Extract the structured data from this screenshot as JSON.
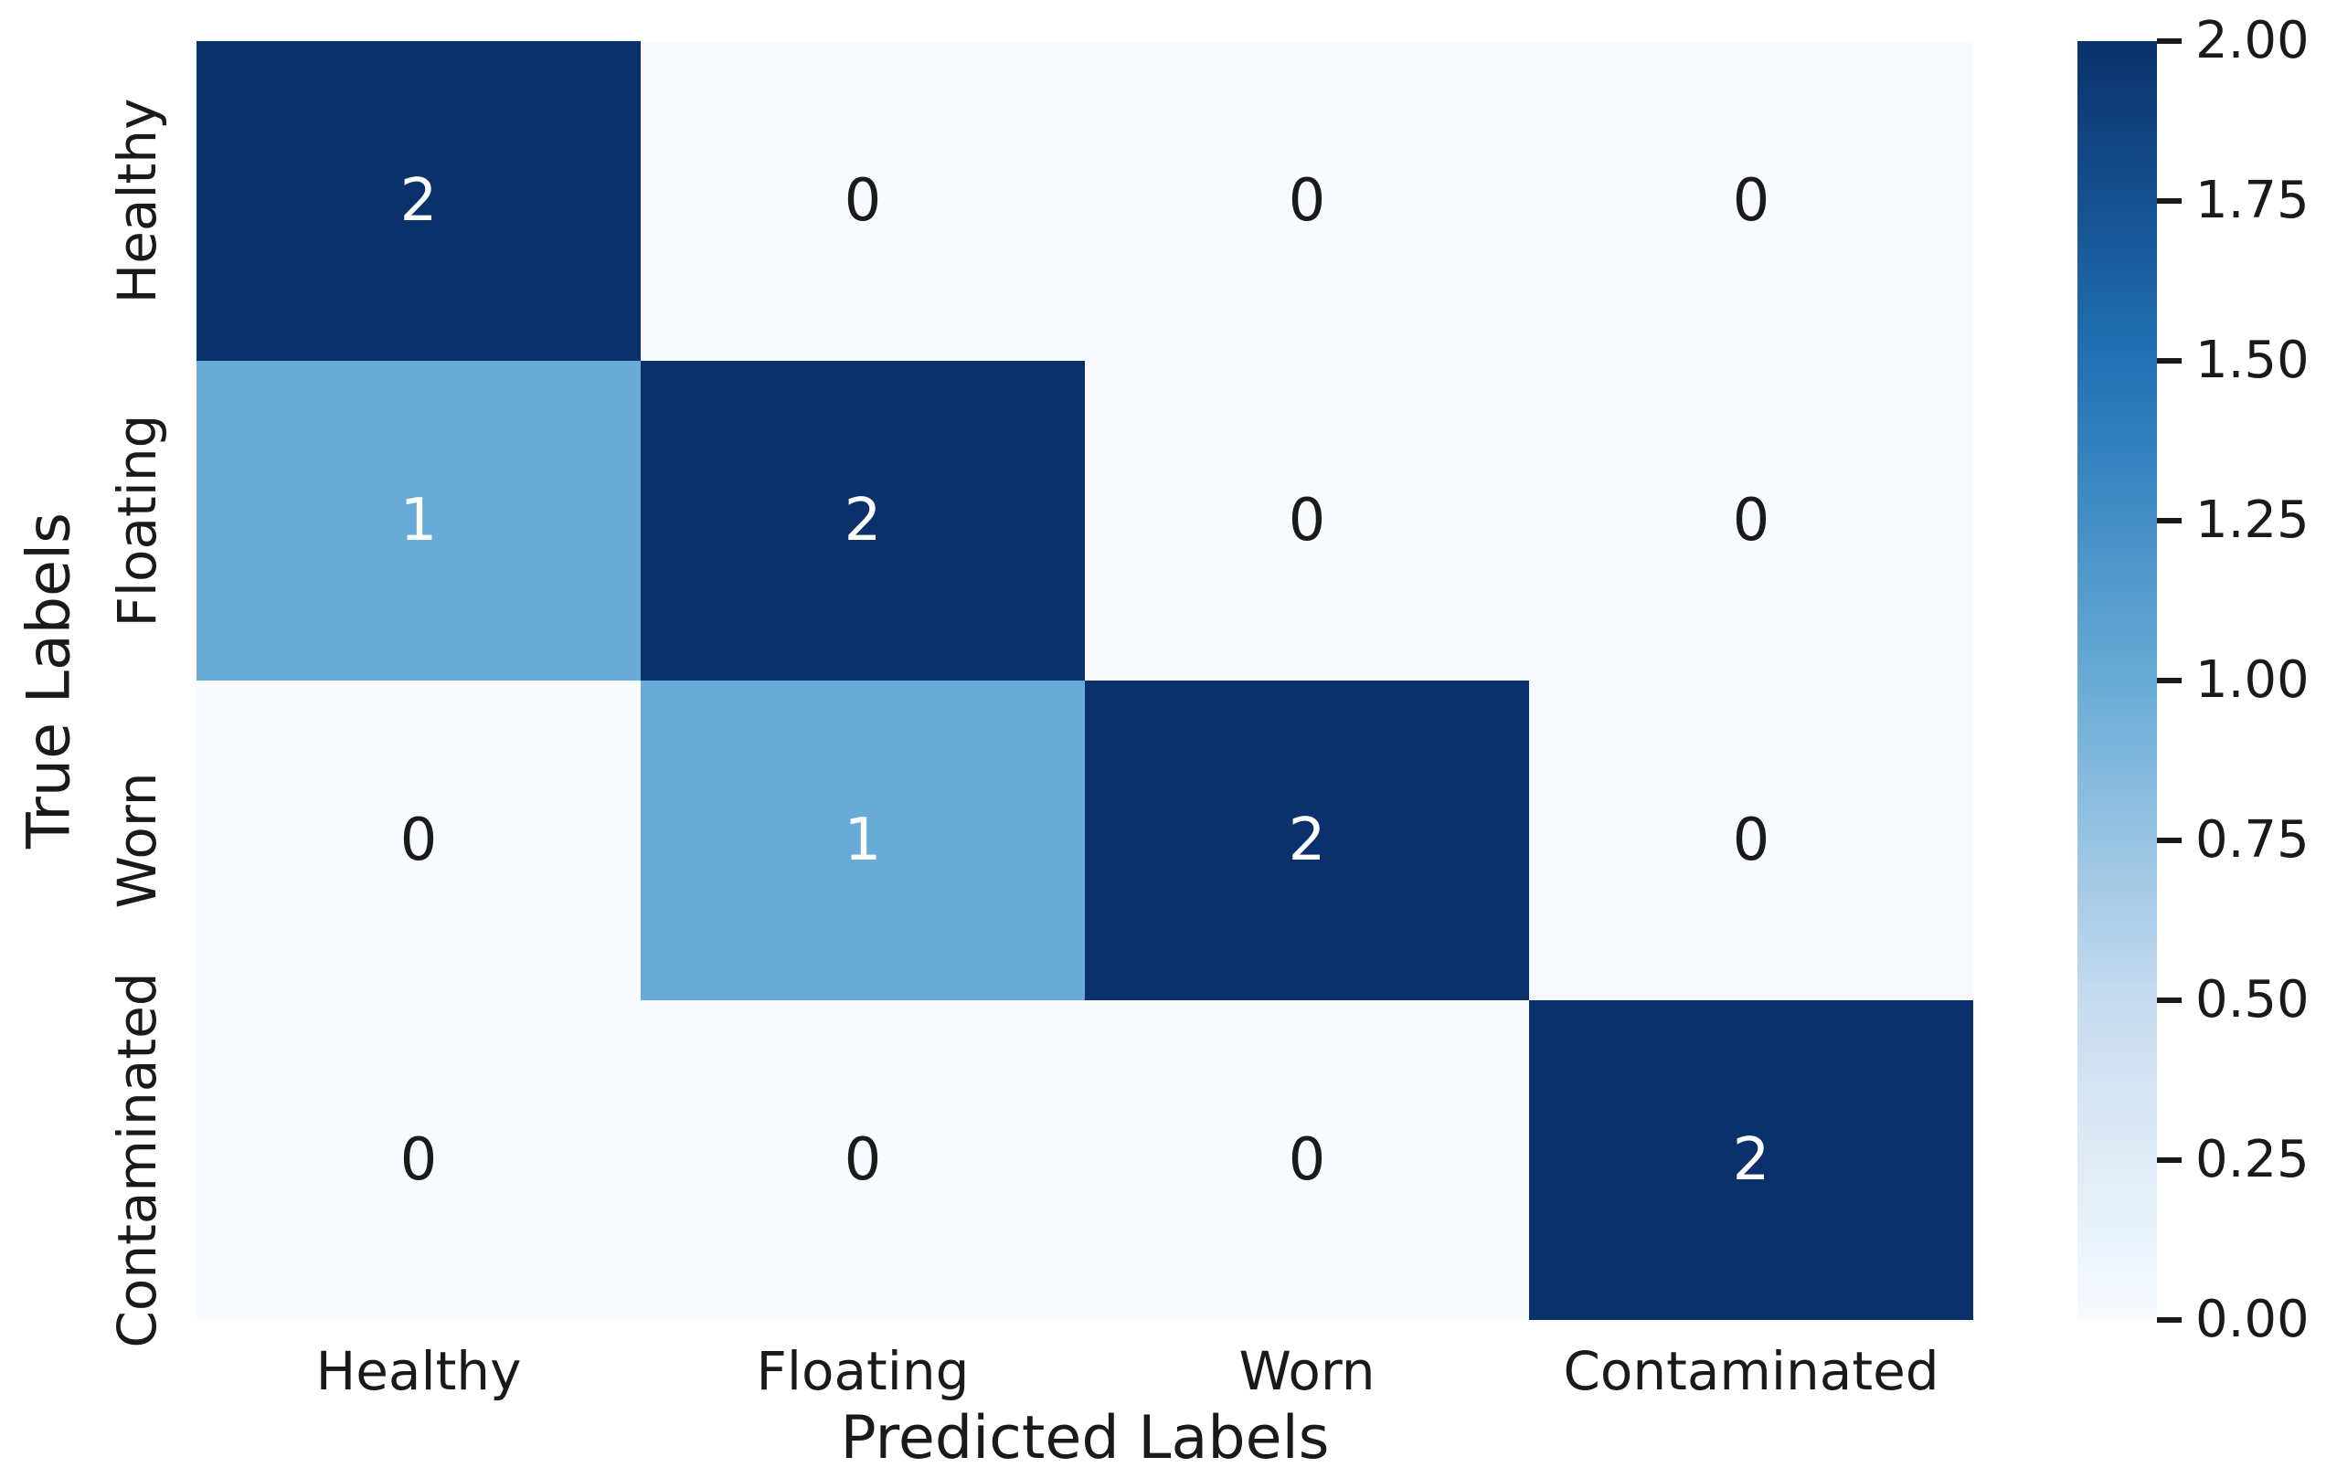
{
  "chart_data": {
    "type": "heatmap",
    "title": "",
    "xlabel": "Predicted Labels",
    "ylabel": "True Labels",
    "x_categories": [
      "Healthy",
      "Floating",
      "Worn",
      "Contaminated"
    ],
    "y_categories": [
      "Healthy",
      "Floating",
      "Worn",
      "Contaminated"
    ],
    "matrix": [
      [
        2,
        0,
        0,
        0
      ],
      [
        1,
        2,
        0,
        0
      ],
      [
        0,
        1,
        2,
        0
      ],
      [
        0,
        0,
        0,
        2
      ]
    ],
    "vmin": 0,
    "vmax": 2,
    "colormap": "Blues",
    "grid": false,
    "legend_position": "right-colorbar",
    "colorbar_ticks": [
      "2.00",
      "1.75",
      "1.50",
      "1.25",
      "1.00",
      "0.75",
      "0.50",
      "0.25",
      "0.00"
    ]
  },
  "colors": {
    "background": "#ffffff",
    "cmap_0": "#f7fbff",
    "cmap_25": "#c6dbef",
    "cmap_50": "#68abd6",
    "cmap_75": "#2171b5",
    "cmap_100": "#0a316b",
    "annotation_light": "#ffffff",
    "annotation_dark": "#1a1a1a",
    "axis_text": "#1a1a1a"
  }
}
